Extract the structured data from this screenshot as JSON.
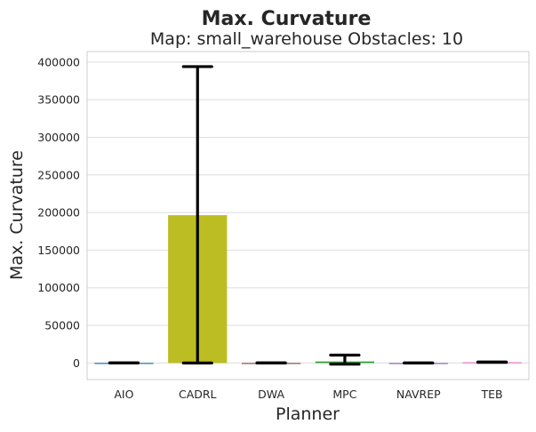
{
  "chart_data": {
    "type": "bar",
    "title": "Max. Curvature",
    "subtitle": "Map: small_warehouse Obstacles: 10",
    "xlabel": "Planner",
    "ylabel": "Max. Curvature",
    "categories": [
      "AIO",
      "CADRL",
      "DWA",
      "MPC",
      "NAVREP",
      "TEB"
    ],
    "values": [
      150,
      196500,
      100,
      2000,
      50,
      1000
    ],
    "error_low": [
      100,
      0,
      80,
      -1500,
      40,
      800
    ],
    "error_high": [
      200,
      394000,
      120,
      10500,
      60,
      1300
    ],
    "colors": [
      "#1f77b4",
      "#bcbd22",
      "#8c564b",
      "#2ca02c",
      "#9467bd",
      "#e377c2"
    ],
    "ylim": [
      -22000,
      414000
    ],
    "yticks": [
      0,
      50000,
      100000,
      150000,
      200000,
      250000,
      300000,
      350000,
      400000
    ],
    "ytick_labels": [
      "0",
      "50000",
      "100000",
      "150000",
      "200000",
      "250000",
      "300000",
      "350000",
      "400000"
    ],
    "grid": "horizontal",
    "legend": "none"
  }
}
